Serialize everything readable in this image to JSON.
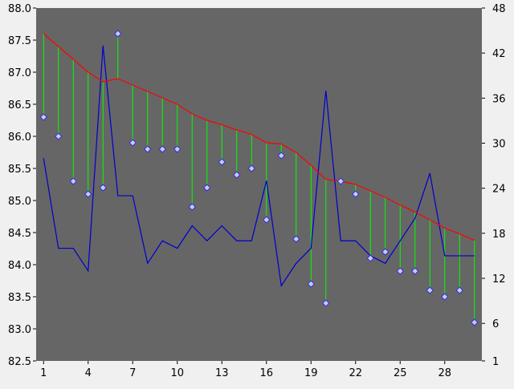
{
  "chart_data": {
    "type": "line",
    "colors": {
      "background": "#f0f0f0",
      "plot_area": "#666666",
      "trend_line": "#ff0000",
      "drop_lines": "#00ff00",
      "secondary_line": "#0000cc",
      "marker_fill": "#c8c8ff",
      "marker_stroke": "#3333cc"
    },
    "x": {
      "min": 0.5,
      "max": 30.5,
      "ticks": [
        1,
        4,
        7,
        10,
        13,
        16,
        19,
        22,
        25,
        28
      ],
      "tick_labels": [
        "1",
        "4",
        "7",
        "10",
        "13",
        "16",
        "19",
        "22",
        "25",
        "28"
      ]
    },
    "y_left": {
      "min": 82.5,
      "max": 88.0,
      "ticks": [
        82.5,
        83.0,
        83.5,
        84.0,
        84.5,
        85.0,
        85.5,
        86.0,
        86.5,
        87.0,
        87.5,
        88.0
      ],
      "tick_labels": [
        "82.5",
        "83.0",
        "83.5",
        "84.0",
        "84.5",
        "85.0",
        "85.5",
        "86.0",
        "86.5",
        "87.0",
        "87.5",
        "88.0"
      ]
    },
    "y_right": {
      "min": 1,
      "max": 48,
      "ticks": [
        1,
        6,
        12,
        18,
        24,
        30,
        36,
        42,
        48
      ],
      "tick_labels": [
        "1",
        "6",
        "12",
        "18",
        "24",
        "30",
        "36",
        "42",
        "48"
      ]
    },
    "grid": false,
    "series": [
      {
        "axis": "left",
        "style": "markers",
        "values": [
          86.3,
          86.0,
          85.3,
          85.1,
          85.2,
          87.6,
          85.9,
          85.8,
          85.8,
          85.8,
          84.9,
          85.2,
          85.6,
          85.4,
          85.5,
          84.7,
          85.7,
          84.4,
          83.7,
          83.4,
          85.3,
          85.1,
          84.1,
          84.2,
          83.9,
          83.9,
          83.6,
          83.5,
          83.6,
          83.1
        ]
      },
      {
        "axis": "left",
        "style": "line",
        "values": [
          87.6,
          87.4,
          87.2,
          87.0,
          86.85,
          86.9,
          86.8,
          86.7,
          86.6,
          86.5,
          86.35,
          86.25,
          86.18,
          86.1,
          86.03,
          85.9,
          85.88,
          85.75,
          85.55,
          85.33,
          85.3,
          85.25,
          85.15,
          85.05,
          84.93,
          84.82,
          84.7,
          84.57,
          84.48,
          84.38
        ]
      },
      {
        "axis": "right",
        "style": "line",
        "values": [
          28,
          16,
          16,
          13,
          43,
          23,
          23,
          14,
          17,
          16,
          19,
          17,
          19,
          17,
          17,
          25,
          11,
          14,
          16,
          37,
          17,
          17,
          15,
          14,
          17,
          20,
          26,
          15,
          15,
          15
        ]
      }
    ]
  }
}
